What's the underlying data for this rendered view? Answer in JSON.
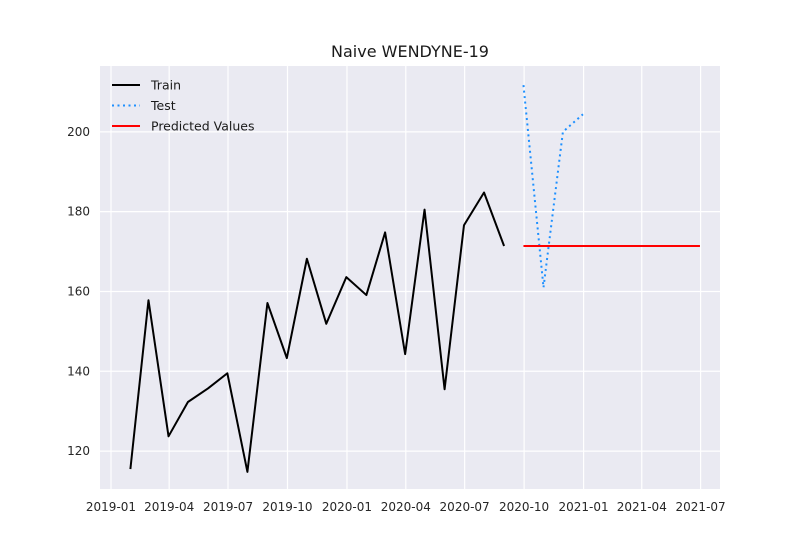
{
  "chart_data": {
    "type": "line",
    "title": "Naive WENDYNE-19",
    "xlabel": "",
    "ylabel": "",
    "grid": true,
    "legend_position": "top-left",
    "xlim": [
      "2018-12-15",
      "2021-07-31"
    ],
    "ylim": [
      110.5,
      216.5
    ],
    "x_ticks": [
      "2019-01",
      "2019-04",
      "2019-07",
      "2019-10",
      "2020-01",
      "2020-04",
      "2020-07",
      "2020-10",
      "2021-01",
      "2021-04",
      "2021-07"
    ],
    "y_ticks": [
      120,
      140,
      160,
      180,
      200
    ],
    "series": [
      {
        "name": "Train",
        "color": "#000000",
        "style": "solid",
        "x": [
          "2019-01-31",
          "2019-02-28",
          "2019-03-31",
          "2019-04-30",
          "2019-05-31",
          "2019-06-30",
          "2019-07-31",
          "2019-08-31",
          "2019-09-30",
          "2019-10-31",
          "2019-11-30",
          "2019-12-31",
          "2020-01-31",
          "2020-02-29",
          "2020-03-31",
          "2020-04-30",
          "2020-05-31",
          "2020-06-30",
          "2020-07-31",
          "2020-08-31"
        ],
        "y": [
          115.5,
          157.8,
          123.7,
          132.3,
          135.7,
          139.5,
          114.8,
          157.1,
          143.3,
          168.2,
          151.9,
          163.6,
          159.1,
          174.8,
          144.3,
          180.5,
          135.5,
          176.6,
          184.8,
          171.4
        ]
      },
      {
        "name": "Test",
        "color": "#1e90ff",
        "style": "dotted",
        "x": [
          "2020-09-30",
          "2020-10-31",
          "2020-11-30",
          "2020-12-31"
        ],
        "y": [
          211.7,
          161.0,
          200.0,
          204.4
        ]
      },
      {
        "name": "Predicted Values",
        "color": "#ff0000",
        "style": "solid",
        "x": [
          "2020-09-30",
          "2021-06-30"
        ],
        "y": [
          171.4,
          171.4
        ]
      }
    ]
  }
}
